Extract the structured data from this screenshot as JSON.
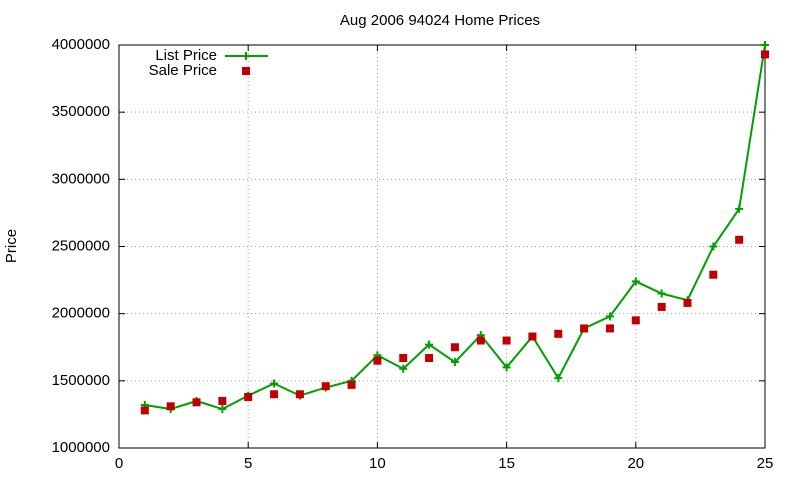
{
  "chart_data": {
    "type": "line",
    "title": "Aug 2006 94024 Home Prices",
    "y_label": "Price",
    "x": [
      1,
      2,
      3,
      4,
      5,
      6,
      7,
      8,
      9,
      10,
      11,
      12,
      13,
      14,
      15,
      16,
      17,
      18,
      19,
      20,
      21,
      22,
      23,
      24,
      25
    ],
    "series": [
      {
        "name": "List Price",
        "color": "#00a000",
        "mode": "lines+markers",
        "values": [
          1320000,
          1290000,
          1350000,
          1290000,
          1390000,
          1480000,
          1390000,
          1450000,
          1500000,
          1690000,
          1590000,
          1770000,
          1640000,
          1840000,
          1600000,
          1830000,
          1520000,
          1890000,
          1980000,
          2240000,
          2150000,
          2100000,
          2500000,
          2780000,
          4000000
        ]
      },
      {
        "name": "Sale Price",
        "color": "#c00000",
        "mode": "markers",
        "values": [
          1280000,
          1310000,
          1340000,
          1350000,
          1380000,
          1400000,
          1400000,
          1460000,
          1470000,
          1650000,
          1670000,
          1670000,
          1750000,
          1800000,
          1800000,
          1830000,
          1850000,
          1890000,
          1890000,
          1950000,
          2050000,
          2080000,
          2290000,
          2550000,
          3930000
        ]
      }
    ],
    "xlim": [
      0,
      25
    ],
    "xticks": [
      0,
      5,
      10,
      15,
      20,
      25
    ],
    "ylim": [
      1000000,
      4000000
    ],
    "yticks": [
      1000000,
      1500000,
      2000000,
      2500000,
      3000000,
      3500000,
      4000000
    ],
    "grid": true,
    "legend": "top-left"
  }
}
